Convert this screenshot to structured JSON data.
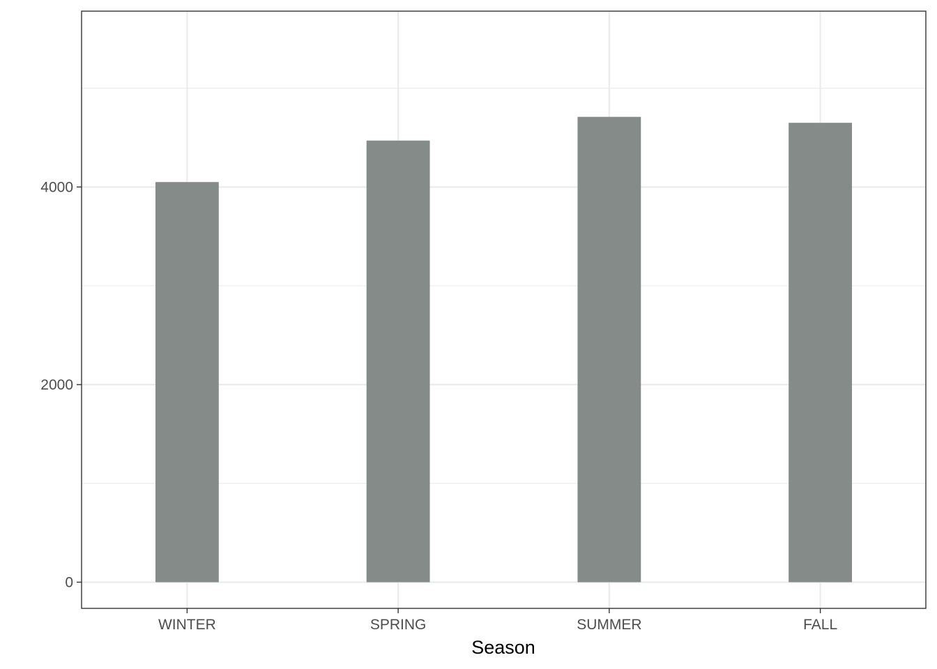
{
  "chart_data": {
    "type": "bar",
    "categories": [
      "WINTER",
      "SPRING",
      "SUMMER",
      "FALL"
    ],
    "values": [
      4050,
      4470,
      4710,
      4650
    ],
    "title": "",
    "xlabel": "Season",
    "ylabel": "",
    "ylim": [
      -265,
      5780
    ],
    "y_ticks": [
      0,
      2000,
      4000
    ],
    "y_tick_labels": [
      "0",
      "2000",
      "4000"
    ],
    "y_minor_gridlines": [
      1000,
      3000,
      5000
    ],
    "grid": true,
    "legend": "none",
    "colors": {
      "bar": "#848b88",
      "grid": "#ebebeb",
      "panel_border": "#333333",
      "tick_text": "#4d4d4d"
    }
  }
}
